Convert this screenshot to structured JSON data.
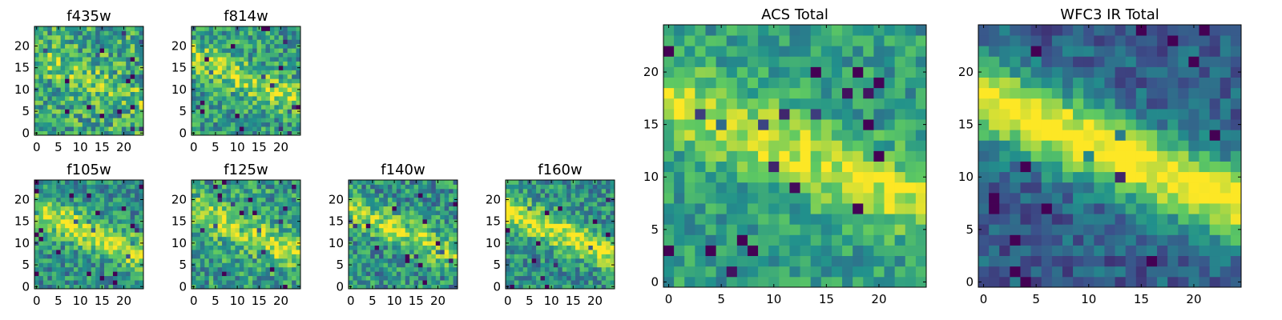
{
  "colormap": "viridis",
  "colorscale_stops": [
    "#440154",
    "#3b528b",
    "#21918c",
    "#5ec962",
    "#fde725"
  ],
  "chart_data": [
    {
      "type": "heatmap",
      "title": "f435w",
      "xlim": [
        0,
        24
      ],
      "ylim": [
        0,
        24
      ],
      "xticks": [
        "0",
        "5",
        "10",
        "15",
        "20"
      ],
      "yticks": [
        "0",
        "5",
        "10",
        "15",
        "20"
      ],
      "grid": false,
      "features": {
        "noise": 0.55,
        "band_strength": 0.15,
        "base": 0.6
      }
    },
    {
      "type": "heatmap",
      "title": "f814w",
      "xlim": [
        0,
        24
      ],
      "ylim": [
        0,
        24
      ],
      "xticks": [
        "0",
        "5",
        "10",
        "15",
        "20"
      ],
      "yticks": [
        "0",
        "5",
        "10",
        "15",
        "20"
      ],
      "grid": false,
      "features": {
        "noise": 0.5,
        "band_strength": 0.3,
        "base": 0.55
      }
    },
    {
      "type": "heatmap",
      "title": "f105w",
      "xlim": [
        0,
        24
      ],
      "ylim": [
        0,
        24
      ],
      "xticks": [
        "0",
        "5",
        "10",
        "15",
        "20"
      ],
      "yticks": [
        "0",
        "5",
        "10",
        "15",
        "20"
      ],
      "grid": false,
      "features": {
        "noise": 0.45,
        "band_strength": 0.45,
        "base": 0.5
      }
    },
    {
      "type": "heatmap",
      "title": "f125w",
      "xlim": [
        0,
        24
      ],
      "ylim": [
        0,
        24
      ],
      "xticks": [
        "0",
        "5",
        "10",
        "15",
        "20"
      ],
      "yticks": [
        "0",
        "5",
        "10",
        "15",
        "20"
      ],
      "grid": false,
      "features": {
        "noise": 0.5,
        "band_strength": 0.35,
        "base": 0.55
      }
    },
    {
      "type": "heatmap",
      "title": "f140w",
      "xlim": [
        0,
        24
      ],
      "ylim": [
        0,
        24
      ],
      "xticks": [
        "0",
        "5",
        "10",
        "15",
        "20"
      ],
      "yticks": [
        "0",
        "5",
        "10",
        "15",
        "20"
      ],
      "grid": false,
      "features": {
        "noise": 0.5,
        "band_strength": 0.35,
        "base": 0.5
      }
    },
    {
      "type": "heatmap",
      "title": "f160w",
      "xlim": [
        0,
        24
      ],
      "ylim": [
        0,
        24
      ],
      "xticks": [
        "0",
        "5",
        "10",
        "15",
        "20"
      ],
      "yticks": [
        "0",
        "5",
        "10",
        "15",
        "20"
      ],
      "grid": false,
      "features": {
        "noise": 0.45,
        "band_strength": 0.45,
        "base": 0.5
      }
    },
    {
      "type": "heatmap",
      "title": "ACS Total",
      "xlim": [
        0,
        24
      ],
      "ylim": [
        0,
        24
      ],
      "xticks": [
        "0",
        "5",
        "10",
        "15",
        "20"
      ],
      "yticks": [
        "0",
        "5",
        "10",
        "15",
        "20"
      ],
      "grid": false,
      "features": {
        "noise": 0.35,
        "band_strength": 0.35,
        "base": 0.55
      }
    },
    {
      "type": "heatmap",
      "title": "WFC3 IR Total",
      "xlim": [
        0,
        24
      ],
      "ylim": [
        0,
        24
      ],
      "xticks": [
        "0",
        "5",
        "10",
        "15",
        "20"
      ],
      "yticks": [
        "0",
        "5",
        "10",
        "15",
        "20"
      ],
      "grid": false,
      "features": {
        "noise": 0.3,
        "band_strength": 0.75,
        "base": 0.3
      }
    }
  ]
}
